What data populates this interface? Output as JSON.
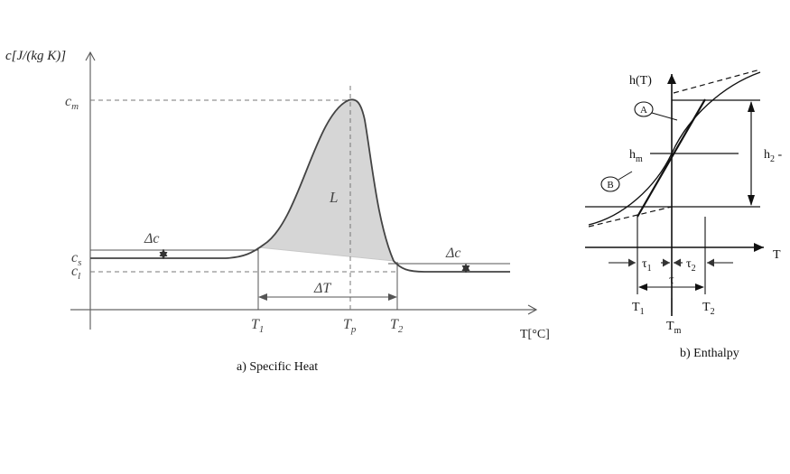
{
  "panel_a": {
    "caption": "a) Specific Heat",
    "y_axis_label": "c[J/(kg K)]",
    "x_axis_label": "T[°C]",
    "labels": {
      "cm": "c",
      "cm_sub": "m",
      "cs": "c",
      "cs_sub": "s",
      "cl": "c",
      "cl_sub": "l",
      "latent": "L",
      "delta_c_left": "Δc",
      "delta_c_right": "Δc",
      "delta_T": "ΔT",
      "T1": "T",
      "T1_sub": "1",
      "Tp": "T",
      "Tp_sub": "p",
      "T2": "T",
      "T2_sub": "2"
    }
  },
  "panel_b": {
    "caption": "b) Enthalpy",
    "labels": {
      "hT": "h(T)",
      "hm": "h",
      "hm_sub": "m",
      "h2": "h",
      "h2_sub": "2",
      "h2_suffix": " -",
      "T_axis": "T",
      "marker_A": "A",
      "marker_B": "B",
      "tau1": "τ",
      "tau1_sub": "1",
      "tau2": "τ",
      "tau2_sub": "2",
      "tau": "τ",
      "T1": "T",
      "T1_sub": "1",
      "T2": "T",
      "T2_sub": "2",
      "Tm": "T",
      "Tm_sub": "m"
    }
  }
}
